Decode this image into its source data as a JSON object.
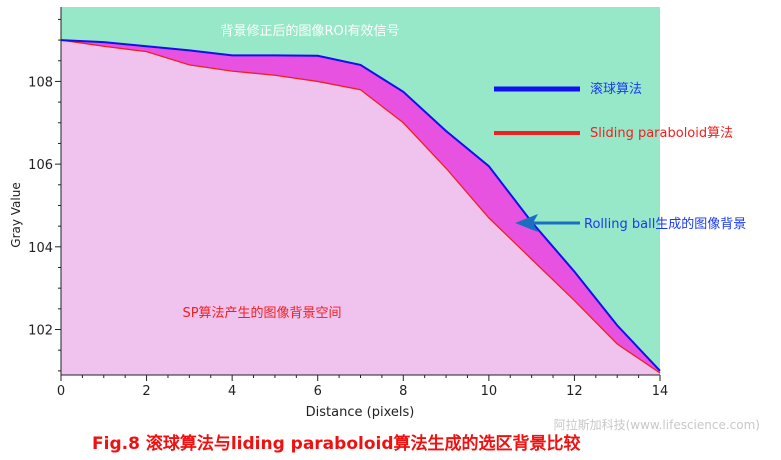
{
  "chart_data": {
    "type": "area",
    "title": "",
    "xlabel": "Distance (pixels)",
    "ylabel": "Gray Value",
    "xlim": [
      0,
      14
    ],
    "ylim": [
      100.9,
      109.8
    ],
    "x_ticks": [
      "0",
      "2",
      "4",
      "6",
      "8",
      "10",
      "12",
      "14"
    ],
    "y_ticks": [
      "102",
      "104",
      "106",
      "108"
    ],
    "x": [
      0,
      1,
      2,
      3,
      4,
      5,
      6,
      7,
      8,
      9,
      10,
      11,
      12,
      13,
      14
    ],
    "series": [
      {
        "name": "滚球算法",
        "color": "#1010f0",
        "values": [
          109.0,
          108.95,
          108.85,
          108.75,
          108.63,
          108.63,
          108.62,
          108.4,
          107.75,
          106.8,
          105.95,
          104.6,
          103.4,
          102.1,
          101.0
        ]
      },
      {
        "name": "Sliding paraboloid算法",
        "color": "#f02020",
        "values": [
          109.0,
          108.85,
          108.72,
          108.4,
          108.25,
          108.15,
          108.0,
          107.8,
          107.0,
          105.9,
          104.7,
          103.7,
          102.7,
          101.65,
          100.95
        ]
      }
    ],
    "fills": {
      "signal": "#96e8c8",
      "rolling_ball_background": "#e852e0",
      "sp_background": "#f0c2ee"
    },
    "annotations": {
      "signal_region": "背景修正后的图像ROI有效信号",
      "rolling_ball_region": "Rolling ball生成的图像背景",
      "sp_region": "SP算法产生的图像背景空间",
      "arrow_color": "#1a6fc0"
    },
    "legend_placement": "right"
  },
  "caption": "Fig.8 滚球算法与liding paraboloid算法生成的选区背景比较",
  "watermark": "阿拉斯加科技(www.lifescience.com)"
}
